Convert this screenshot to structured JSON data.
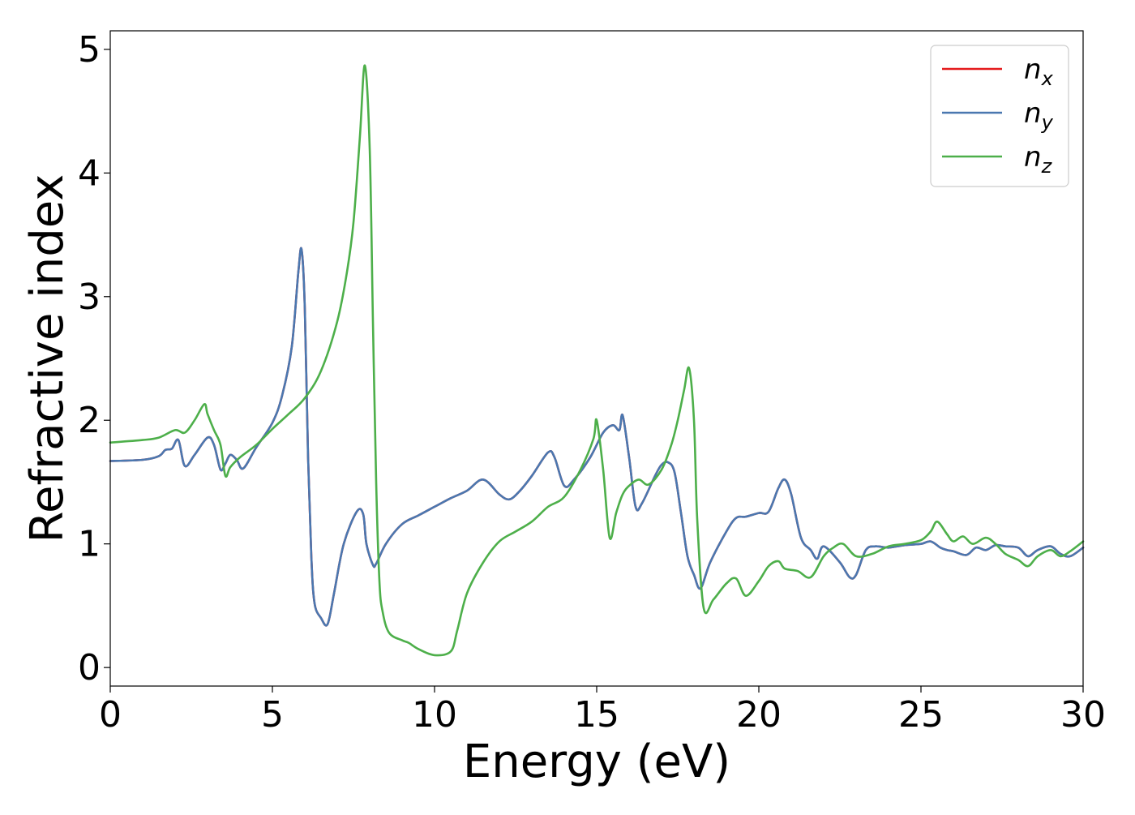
{
  "chart_data": {
    "type": "line",
    "title": "",
    "xlabel": "Energy (eV)",
    "ylabel": "Refractive index",
    "xlim": [
      0,
      30
    ],
    "ylim": [
      -0.15,
      5.15
    ],
    "xticks": [
      0,
      5,
      10,
      15,
      20,
      25,
      30
    ],
    "xtick_labels": [
      "0",
      "5",
      "10",
      "15",
      "20",
      "25",
      "30"
    ],
    "yticks": [
      0,
      1,
      2,
      3,
      4,
      5
    ],
    "ytick_labels": [
      "0",
      "1",
      "2",
      "3",
      "4",
      "5"
    ],
    "grid": false,
    "legend_position": "top-right",
    "series": [
      {
        "name": "n_x",
        "legend_base": "n",
        "legend_sub": "x",
        "color": "#e41a1c",
        "x": [
          0,
          1,
          1.5,
          1.7,
          1.9,
          2.1,
          2.3,
          2.6,
          3.0,
          3.2,
          3.4,
          3.55,
          3.7,
          3.9,
          4.1,
          4.5,
          5.0,
          5.3,
          5.6,
          5.8,
          5.9,
          6.0,
          6.1,
          6.2,
          6.3,
          6.5,
          6.7,
          6.9,
          7.2,
          7.6,
          7.8,
          7.9,
          8.1,
          8.2,
          8.5,
          9.0,
          9.5,
          10.0,
          10.5,
          11.0,
          11.5,
          12.0,
          12.3,
          12.6,
          13.0,
          13.5,
          13.7,
          14.0,
          14.3,
          14.8,
          15.2,
          15.5,
          15.7,
          15.8,
          16.0,
          16.2,
          16.4,
          16.8,
          17.0,
          17.2,
          17.4,
          17.6,
          17.8,
          18.0,
          18.2,
          18.5,
          19.0,
          19.3,
          19.6,
          20.0,
          20.3,
          20.6,
          20.8,
          21.0,
          21.3,
          21.6,
          21.8,
          22.0,
          22.5,
          22.8,
          23.0,
          23.3,
          23.6,
          24.0,
          24.5,
          25.0,
          25.3,
          25.6,
          25.8,
          26.0,
          26.4,
          26.7,
          27.0,
          27.3,
          27.6,
          28.0,
          28.3,
          28.6,
          29.0,
          29.3,
          29.6,
          30.0
        ],
        "y": [
          1.67,
          1.68,
          1.71,
          1.76,
          1.77,
          1.84,
          1.63,
          1.72,
          1.86,
          1.8,
          1.6,
          1.65,
          1.72,
          1.68,
          1.61,
          1.78,
          1.98,
          2.2,
          2.6,
          3.2,
          3.38,
          2.9,
          1.7,
          0.9,
          0.52,
          0.4,
          0.35,
          0.6,
          1.0,
          1.26,
          1.24,
          1.0,
          0.83,
          0.84,
          1.0,
          1.16,
          1.23,
          1.3,
          1.37,
          1.43,
          1.52,
          1.4,
          1.36,
          1.42,
          1.55,
          1.74,
          1.7,
          1.47,
          1.52,
          1.7,
          1.9,
          1.96,
          1.92,
          2.04,
          1.7,
          1.3,
          1.33,
          1.55,
          1.64,
          1.66,
          1.58,
          1.25,
          0.9,
          0.75,
          0.64,
          0.85,
          1.1,
          1.21,
          1.22,
          1.25,
          1.26,
          1.45,
          1.52,
          1.4,
          1.05,
          0.95,
          0.88,
          0.98,
          0.85,
          0.73,
          0.75,
          0.95,
          0.98,
          0.97,
          0.99,
          1.0,
          1.02,
          0.97,
          0.95,
          0.94,
          0.91,
          0.97,
          0.95,
          0.99,
          0.98,
          0.97,
          0.9,
          0.95,
          0.98,
          0.92,
          0.9,
          0.97
        ]
      },
      {
        "name": "n_y",
        "legend_base": "n",
        "legend_sub": "y",
        "color": "#4a78b0",
        "x": [
          0,
          1,
          1.5,
          1.7,
          1.9,
          2.1,
          2.3,
          2.6,
          3.0,
          3.2,
          3.4,
          3.55,
          3.7,
          3.9,
          4.1,
          4.5,
          5.0,
          5.3,
          5.6,
          5.8,
          5.9,
          6.0,
          6.1,
          6.2,
          6.3,
          6.5,
          6.7,
          6.9,
          7.2,
          7.6,
          7.8,
          7.9,
          8.1,
          8.2,
          8.5,
          9.0,
          9.5,
          10.0,
          10.5,
          11.0,
          11.5,
          12.0,
          12.3,
          12.6,
          13.0,
          13.5,
          13.7,
          14.0,
          14.3,
          14.8,
          15.2,
          15.5,
          15.7,
          15.8,
          16.0,
          16.2,
          16.4,
          16.8,
          17.0,
          17.2,
          17.4,
          17.6,
          17.8,
          18.0,
          18.2,
          18.5,
          19.0,
          19.3,
          19.6,
          20.0,
          20.3,
          20.6,
          20.8,
          21.0,
          21.3,
          21.6,
          21.8,
          22.0,
          22.5,
          22.8,
          23.0,
          23.3,
          23.6,
          24.0,
          24.5,
          25.0,
          25.3,
          25.6,
          25.8,
          26.0,
          26.4,
          26.7,
          27.0,
          27.3,
          27.6,
          28.0,
          28.3,
          28.6,
          29.0,
          29.3,
          29.6,
          30.0
        ],
        "y": [
          1.67,
          1.68,
          1.71,
          1.76,
          1.77,
          1.84,
          1.63,
          1.72,
          1.86,
          1.8,
          1.6,
          1.65,
          1.72,
          1.68,
          1.61,
          1.78,
          1.98,
          2.2,
          2.6,
          3.2,
          3.38,
          2.9,
          1.7,
          0.9,
          0.52,
          0.4,
          0.35,
          0.6,
          1.0,
          1.26,
          1.24,
          1.0,
          0.83,
          0.84,
          1.0,
          1.16,
          1.23,
          1.3,
          1.37,
          1.43,
          1.52,
          1.4,
          1.36,
          1.42,
          1.55,
          1.74,
          1.7,
          1.47,
          1.52,
          1.7,
          1.9,
          1.96,
          1.92,
          2.04,
          1.7,
          1.3,
          1.33,
          1.55,
          1.64,
          1.66,
          1.58,
          1.25,
          0.9,
          0.75,
          0.64,
          0.85,
          1.1,
          1.21,
          1.22,
          1.25,
          1.26,
          1.45,
          1.52,
          1.4,
          1.05,
          0.95,
          0.88,
          0.98,
          0.85,
          0.73,
          0.75,
          0.95,
          0.98,
          0.97,
          0.99,
          1.0,
          1.02,
          0.97,
          0.95,
          0.94,
          0.91,
          0.97,
          0.95,
          0.99,
          0.98,
          0.97,
          0.9,
          0.95,
          0.98,
          0.92,
          0.9,
          0.97
        ]
      },
      {
        "name": "n_z",
        "legend_base": "n",
        "legend_sub": "z",
        "color": "#4daf4a",
        "x": [
          0,
          1,
          1.5,
          2.0,
          2.3,
          2.6,
          2.9,
          3.0,
          3.2,
          3.4,
          3.55,
          3.7,
          4.0,
          4.5,
          5.0,
          5.5,
          6.0,
          6.5,
          7.0,
          7.3,
          7.5,
          7.7,
          7.85,
          8.0,
          8.1,
          8.2,
          8.3,
          8.4,
          8.6,
          9.0,
          9.2,
          9.5,
          10.0,
          10.5,
          10.7,
          11.0,
          11.5,
          12.0,
          12.5,
          13.0,
          13.5,
          14.0,
          14.5,
          14.9,
          15.0,
          15.2,
          15.4,
          15.6,
          15.8,
          16.0,
          16.3,
          16.6,
          17.0,
          17.3,
          17.5,
          17.7,
          17.85,
          18.0,
          18.1,
          18.3,
          18.6,
          19.0,
          19.3,
          19.6,
          20.0,
          20.3,
          20.6,
          20.8,
          21.2,
          21.6,
          22.0,
          22.3,
          22.6,
          23.0,
          23.5,
          24.0,
          24.5,
          25.0,
          25.3,
          25.5,
          25.8,
          26.0,
          26.3,
          26.6,
          27.0,
          27.3,
          27.6,
          28.0,
          28.3,
          28.6,
          29.0,
          29.3,
          29.6,
          30.0
        ],
        "y": [
          1.82,
          1.84,
          1.86,
          1.92,
          1.9,
          2.0,
          2.13,
          2.05,
          1.92,
          1.8,
          1.55,
          1.62,
          1.7,
          1.8,
          1.93,
          2.05,
          2.18,
          2.4,
          2.8,
          3.2,
          3.6,
          4.3,
          4.87,
          4.2,
          2.8,
          1.5,
          0.7,
          0.45,
          0.28,
          0.22,
          0.2,
          0.15,
          0.1,
          0.13,
          0.3,
          0.6,
          0.85,
          1.02,
          1.1,
          1.18,
          1.3,
          1.38,
          1.6,
          1.85,
          2.0,
          1.6,
          1.05,
          1.25,
          1.4,
          1.47,
          1.52,
          1.48,
          1.6,
          1.8,
          2.0,
          2.25,
          2.42,
          2.0,
          1.2,
          0.48,
          0.55,
          0.68,
          0.72,
          0.58,
          0.7,
          0.82,
          0.86,
          0.8,
          0.78,
          0.73,
          0.9,
          0.97,
          1.0,
          0.9,
          0.92,
          0.98,
          1.0,
          1.03,
          1.1,
          1.18,
          1.08,
          1.02,
          1.06,
          1.0,
          1.05,
          1.0,
          0.92,
          0.87,
          0.82,
          0.9,
          0.95,
          0.9,
          0.94,
          1.02
        ]
      }
    ]
  }
}
